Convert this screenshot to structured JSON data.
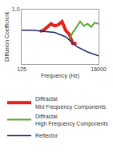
{
  "chart_data": {
    "type": "line",
    "x_label": "Frequency (Hz)",
    "y_label": "Diffusion Coefficient",
    "log": "x",
    "xlim": [
      125,
      16000
    ],
    "xticks": [
      125,
      16000
    ],
    "ylim": [
      0,
      1
    ],
    "yticks": [
      {
        "value": 1,
        "label": "1.0"
      }
    ],
    "grid": false,
    "legend": "bottom",
    "series": [
      {
        "name": "Diffractal Mid Frequency Components",
        "color": "#e0231b",
        "x": [
          400,
          500,
          630,
          800,
          1000,
          1250,
          1600,
          2000,
          2500,
          3150,
          4000
        ],
        "values": [
          0.6,
          0.62,
          0.68,
          0.74,
          0.7,
          0.72,
          0.78,
          0.62,
          0.55,
          0.38,
          0.38
        ]
      },
      {
        "name": "Diffractal High Frequency Components",
        "color": "#5aa832",
        "x": [
          2500,
          3150,
          4000,
          5000,
          6300,
          8000,
          10000,
          12500,
          16000
        ],
        "values": [
          0.45,
          0.58,
          0.68,
          0.78,
          0.7,
          0.74,
          0.68,
          0.76,
          0.74
        ]
      },
      {
        "name": "Reflector",
        "color": "#1f2a6e",
        "x": [
          125,
          250,
          500,
          1000,
          2000,
          4000,
          8000,
          16000
        ],
        "values": [
          0.62,
          0.62,
          0.6,
          0.58,
          0.5,
          0.32,
          0.22,
          0.15
        ]
      }
    ]
  }
}
